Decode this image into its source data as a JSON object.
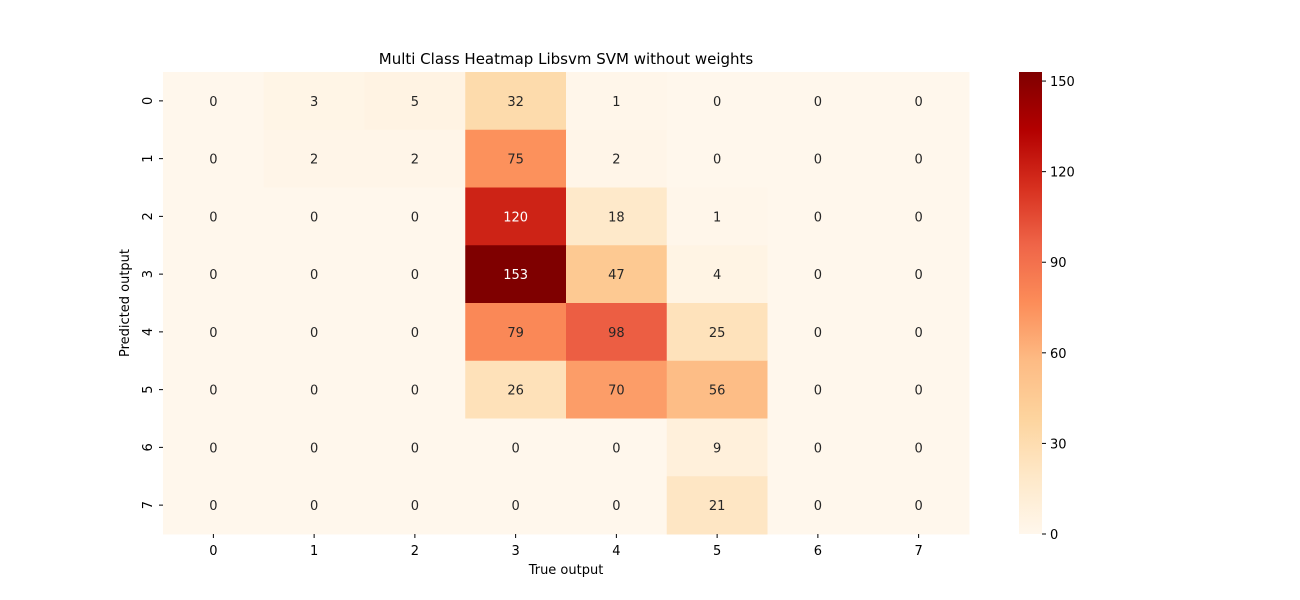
{
  "chart_data": {
    "type": "heatmap",
    "title": "Multi Class Heatmap Libsvm SVM without weights",
    "xlabel": "True output",
    "ylabel": "Predicted output",
    "x_categories": [
      "0",
      "1",
      "2",
      "3",
      "4",
      "5",
      "6",
      "7"
    ],
    "y_categories": [
      "0",
      "1",
      "2",
      "3",
      "4",
      "5",
      "6",
      "7"
    ],
    "values": [
      [
        0,
        3,
        5,
        32,
        1,
        0,
        0,
        0
      ],
      [
        0,
        2,
        2,
        75,
        2,
        0,
        0,
        0
      ],
      [
        0,
        0,
        0,
        120,
        18,
        1,
        0,
        0
      ],
      [
        0,
        0,
        0,
        153,
        47,
        4,
        0,
        0
      ],
      [
        0,
        0,
        0,
        79,
        98,
        25,
        0,
        0
      ],
      [
        0,
        0,
        0,
        26,
        70,
        56,
        0,
        0
      ],
      [
        0,
        0,
        0,
        0,
        0,
        9,
        0,
        0
      ],
      [
        0,
        0,
        0,
        0,
        0,
        21,
        0,
        0
      ]
    ],
    "colormap": "OrRd",
    "colormap_stops": [
      "#fff7ec",
      "#fee8c8",
      "#fdd49e",
      "#fdbb84",
      "#fc8d59",
      "#ef6548",
      "#d7301f",
      "#b30000",
      "#7f0000"
    ],
    "value_range": [
      0,
      153
    ],
    "colorbar_ticks": [
      "0",
      "30",
      "60",
      "90",
      "120",
      "150"
    ],
    "text_dark": "#262626",
    "text_light": "#ffffff"
  }
}
